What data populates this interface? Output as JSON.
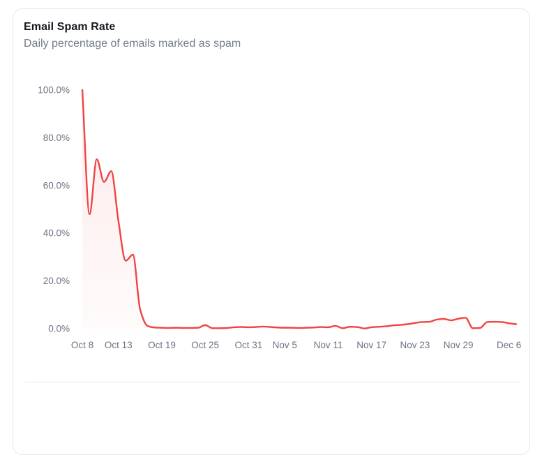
{
  "chart_data": {
    "type": "area",
    "title": "Email Spam Rate",
    "subtitle": "Daily percentage of emails marked as spam",
    "xlabel": "",
    "ylabel": "",
    "ylim": [
      0,
      100
    ],
    "grid": false,
    "legend": false,
    "line_color": "#ef4444",
    "fill_color": "#ef4444",
    "axis_text_color": "#6b7280",
    "x": [
      "Oct 8",
      "Oct 9",
      "Oct 10",
      "Oct 11",
      "Oct 12",
      "Oct 13",
      "Oct 14",
      "Oct 15",
      "Oct 16",
      "Oct 17",
      "Oct 18",
      "Oct 19",
      "Oct 20",
      "Oct 21",
      "Oct 22",
      "Oct 23",
      "Oct 24",
      "Oct 25",
      "Oct 26",
      "Oct 27",
      "Oct 28",
      "Oct 29",
      "Oct 30",
      "Oct 31",
      "Nov 1",
      "Nov 2",
      "Nov 3",
      "Nov 4",
      "Nov 5",
      "Nov 6",
      "Nov 7",
      "Nov 8",
      "Nov 9",
      "Nov 10",
      "Nov 11",
      "Nov 12",
      "Nov 13",
      "Nov 14",
      "Nov 15",
      "Nov 16",
      "Nov 17",
      "Nov 18",
      "Nov 19",
      "Nov 20",
      "Nov 21",
      "Nov 22",
      "Nov 23",
      "Nov 24",
      "Nov 25",
      "Nov 26",
      "Nov 27",
      "Nov 28",
      "Nov 29",
      "Nov 30",
      "Dec 1",
      "Dec 2",
      "Dec 3",
      "Dec 4",
      "Dec 5",
      "Dec 6",
      "Dec 7"
    ],
    "values": [
      100,
      48,
      71,
      61.5,
      66,
      45,
      28.5,
      31,
      8,
      1.2,
      0.5,
      0.4,
      0.3,
      0.4,
      0.3,
      0.3,
      0.4,
      1.5,
      0.2,
      0.2,
      0.3,
      0.6,
      0.7,
      0.6,
      0.7,
      0.9,
      0.7,
      0.5,
      0.4,
      0.4,
      0.3,
      0.4,
      0.5,
      0.7,
      0.6,
      1.2,
      0.2,
      0.8,
      0.7,
      0.1,
      0.6,
      0.8,
      1.0,
      1.4,
      1.6,
      1.9,
      2.4,
      2.8,
      2.9,
      3.8,
      4.1,
      3.5,
      4.2,
      4.6,
      0.2,
      0.3,
      2.8,
      2.9,
      2.8,
      2.3,
      1.9
    ],
    "y_ticks": [
      {
        "label": "0.0%",
        "value": 0
      },
      {
        "label": "20.0%",
        "value": 20
      },
      {
        "label": "40.0%",
        "value": 40
      },
      {
        "label": "60.0%",
        "value": 60
      },
      {
        "label": "80.0%",
        "value": 80
      },
      {
        "label": "100.0%",
        "value": 100
      }
    ],
    "x_ticks": [
      {
        "label": "Oct 8",
        "index": 0
      },
      {
        "label": "Oct 13",
        "index": 5
      },
      {
        "label": "Oct 19",
        "index": 11
      },
      {
        "label": "Oct 25",
        "index": 17
      },
      {
        "label": "Oct 31",
        "index": 23
      },
      {
        "label": "Nov 5",
        "index": 28
      },
      {
        "label": "Nov 11",
        "index": 34
      },
      {
        "label": "Nov 17",
        "index": 40
      },
      {
        "label": "Nov 23",
        "index": 46
      },
      {
        "label": "Nov 29",
        "index": 52
      },
      {
        "label": "Dec 6",
        "index": 59
      }
    ]
  }
}
